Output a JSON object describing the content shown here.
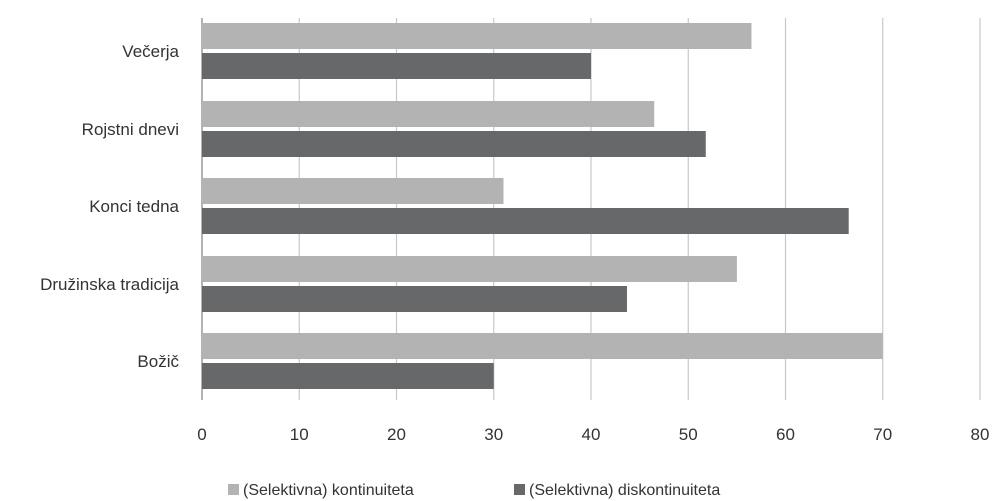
{
  "chart_data": {
    "type": "bar",
    "orientation": "horizontal",
    "categories": [
      "Večerja",
      "Rojstni dnevi",
      "Konci tedna",
      "Družinska tradicija",
      "Božič"
    ],
    "series": [
      {
        "name": "(Selektivna) kontinuiteta",
        "values": [
          56.5,
          46.5,
          31,
          55,
          70
        ],
        "color": "#b3b3b4"
      },
      {
        "name": "(Selektivna) diskontinuiteta",
        "values": [
          40,
          51.8,
          66.5,
          43.7,
          30
        ],
        "color": "#676869"
      }
    ],
    "xlim": [
      0,
      80
    ],
    "xticks": [
      "0",
      "10",
      "20",
      "30",
      "40",
      "50",
      "60",
      "70",
      "80"
    ],
    "grid": "vertical",
    "legend_position": "bottom",
    "title": "",
    "xlabel": "",
    "ylabel": ""
  }
}
